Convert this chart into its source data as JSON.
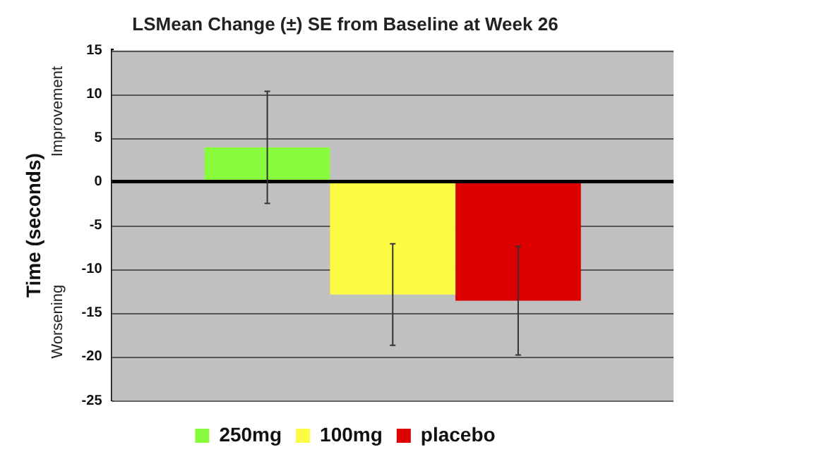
{
  "chart_data": {
    "type": "bar",
    "title": "LSMean Change (±) SE from Baseline at Week 26",
    "ylabel": "Time (seconds)",
    "annotations": [
      "Improvement",
      "Worsening"
    ],
    "categories": [
      null
    ],
    "series": [
      {
        "name": "250mg",
        "color": "#88fc3c",
        "values": [
          3.9
        ],
        "errors": [
          6.4
        ]
      },
      {
        "name": "100mg",
        "color": "#fcfc44",
        "values": [
          -12.9
        ],
        "errors": [
          5.8
        ]
      },
      {
        "name": "placebo",
        "color": "#dc0000",
        "values": [
          -13.6
        ],
        "errors": [
          6.2
        ]
      }
    ],
    "ylim": [
      -25,
      15
    ],
    "yticks": [
      -25,
      -20,
      -15,
      -10,
      -5,
      0,
      5,
      10,
      15
    ],
    "grid": "y",
    "legend": "bottom",
    "ref_lines": [
      {
        "axis": "y",
        "value": 0,
        "color": "#000000"
      }
    ]
  }
}
